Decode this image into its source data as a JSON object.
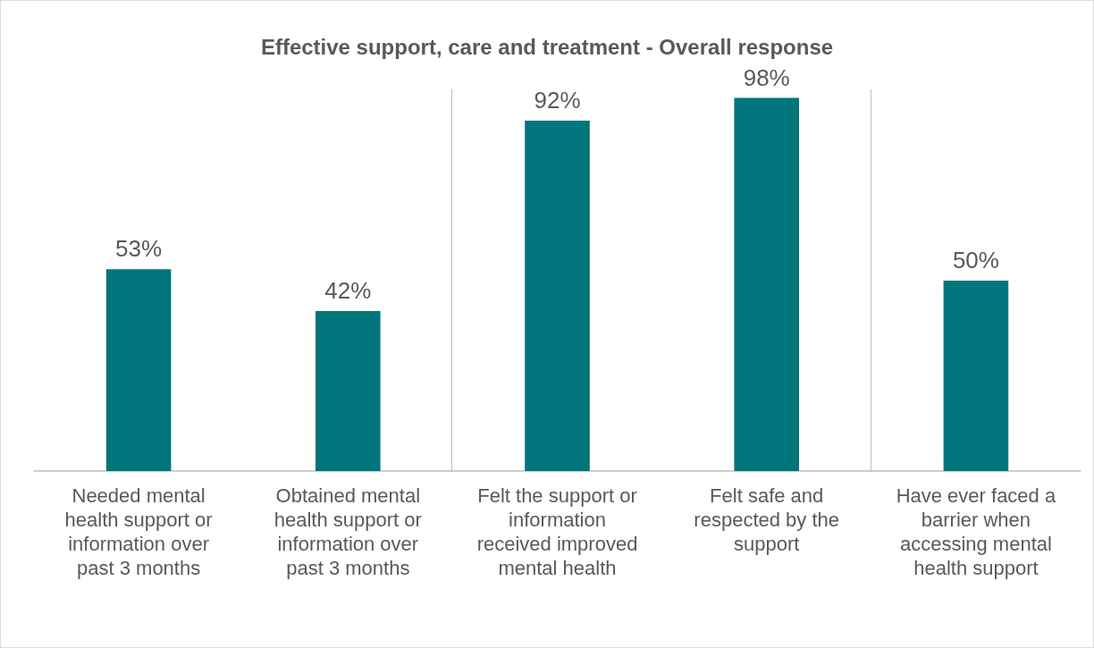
{
  "chart_data": {
    "type": "bar",
    "title": "Effective support, care and treatment - Overall response",
    "categories": [
      "Needed mental health support or information over past 3 months",
      "Obtained mental health support or information over past 3 months",
      "Felt the support or information received improved mental health",
      "Felt safe and respected by the support",
      "Have ever faced a barrier when accessing mental health support"
    ],
    "values": [
      53,
      42,
      92,
      98,
      50
    ],
    "value_labels": [
      "53%",
      "42%",
      "92%",
      "98%",
      "50%"
    ],
    "color": "#00767c"
  }
}
